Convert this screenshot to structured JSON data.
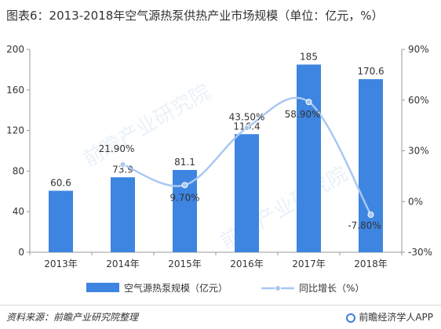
{
  "title": "图表6：2013-2018年空气源热泵供热产业市场规模（单位：亿元，%）",
  "chart_data": {
    "type": "bar+line",
    "categories": [
      "2013年",
      "2014年",
      "2015年",
      "2016年",
      "2017年",
      "2018年"
    ],
    "series": [
      {
        "name": "空气源热泵规模（亿元）",
        "type": "bar",
        "axis": "left",
        "values": [
          60.6,
          73.9,
          81.1,
          116.4,
          185,
          170.6
        ],
        "labels": [
          "60.6",
          "73.9",
          "81.1",
          "116.4",
          "185",
          "170.6"
        ],
        "color": "#3d85e0"
      },
      {
        "name": "同比增长（%）",
        "type": "line",
        "axis": "right",
        "values": [
          null,
          21.9,
          9.7,
          43.5,
          58.9,
          -7.8
        ],
        "labels": [
          "",
          "21.90%",
          "9.70%",
          "43.50%",
          "58.90%",
          "-7.80%"
        ],
        "color": "#a9c8f2"
      }
    ],
    "y_left": {
      "min": 0,
      "max": 200,
      "ticks": [
        0,
        40,
        80,
        120,
        160,
        200
      ]
    },
    "y_right": {
      "min": -30,
      "max": 90,
      "ticks": [
        "-30%",
        "0%",
        "30%",
        "60%",
        "90%"
      ],
      "tick_values": [
        -30,
        0,
        30,
        60,
        90
      ]
    },
    "legend_position": "bottom",
    "grid": false
  },
  "watermark": [
    "前瞻产业研究院",
    "前瞻产业研究院"
  ],
  "footer": {
    "source": "资料来源：前瞻产业研究院整理",
    "brand": "前瞻经济学人APP"
  },
  "colors": {
    "bar": "#3d85e0",
    "line": "#a9c8f2",
    "axis": "#999999"
  }
}
